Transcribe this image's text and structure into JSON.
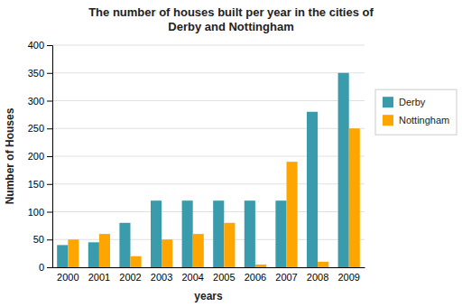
{
  "chart_data": {
    "type": "bar",
    "title": "The number of houses built per year in the cities of\nDerby and Nottingham",
    "xlabel": "years",
    "ylabel": "Number of Houses",
    "categories": [
      "2000",
      "2001",
      "2002",
      "2003",
      "2004",
      "2005",
      "2006",
      "2007",
      "2008",
      "2009"
    ],
    "series": [
      {
        "name": "Derby",
        "color": "#3A9BAD",
        "values": [
          40,
          45,
          80,
          120,
          120,
          120,
          120,
          120,
          280,
          350
        ]
      },
      {
        "name": "Nottingham",
        "color": "#FFA500",
        "values": [
          50,
          60,
          20,
          50,
          60,
          80,
          5,
          190,
          10,
          250
        ]
      }
    ],
    "ylim": [
      0,
      400
    ],
    "yticks": [
      0,
      50,
      100,
      150,
      200,
      250,
      300,
      350,
      400
    ],
    "grid": true,
    "legend": "right"
  }
}
